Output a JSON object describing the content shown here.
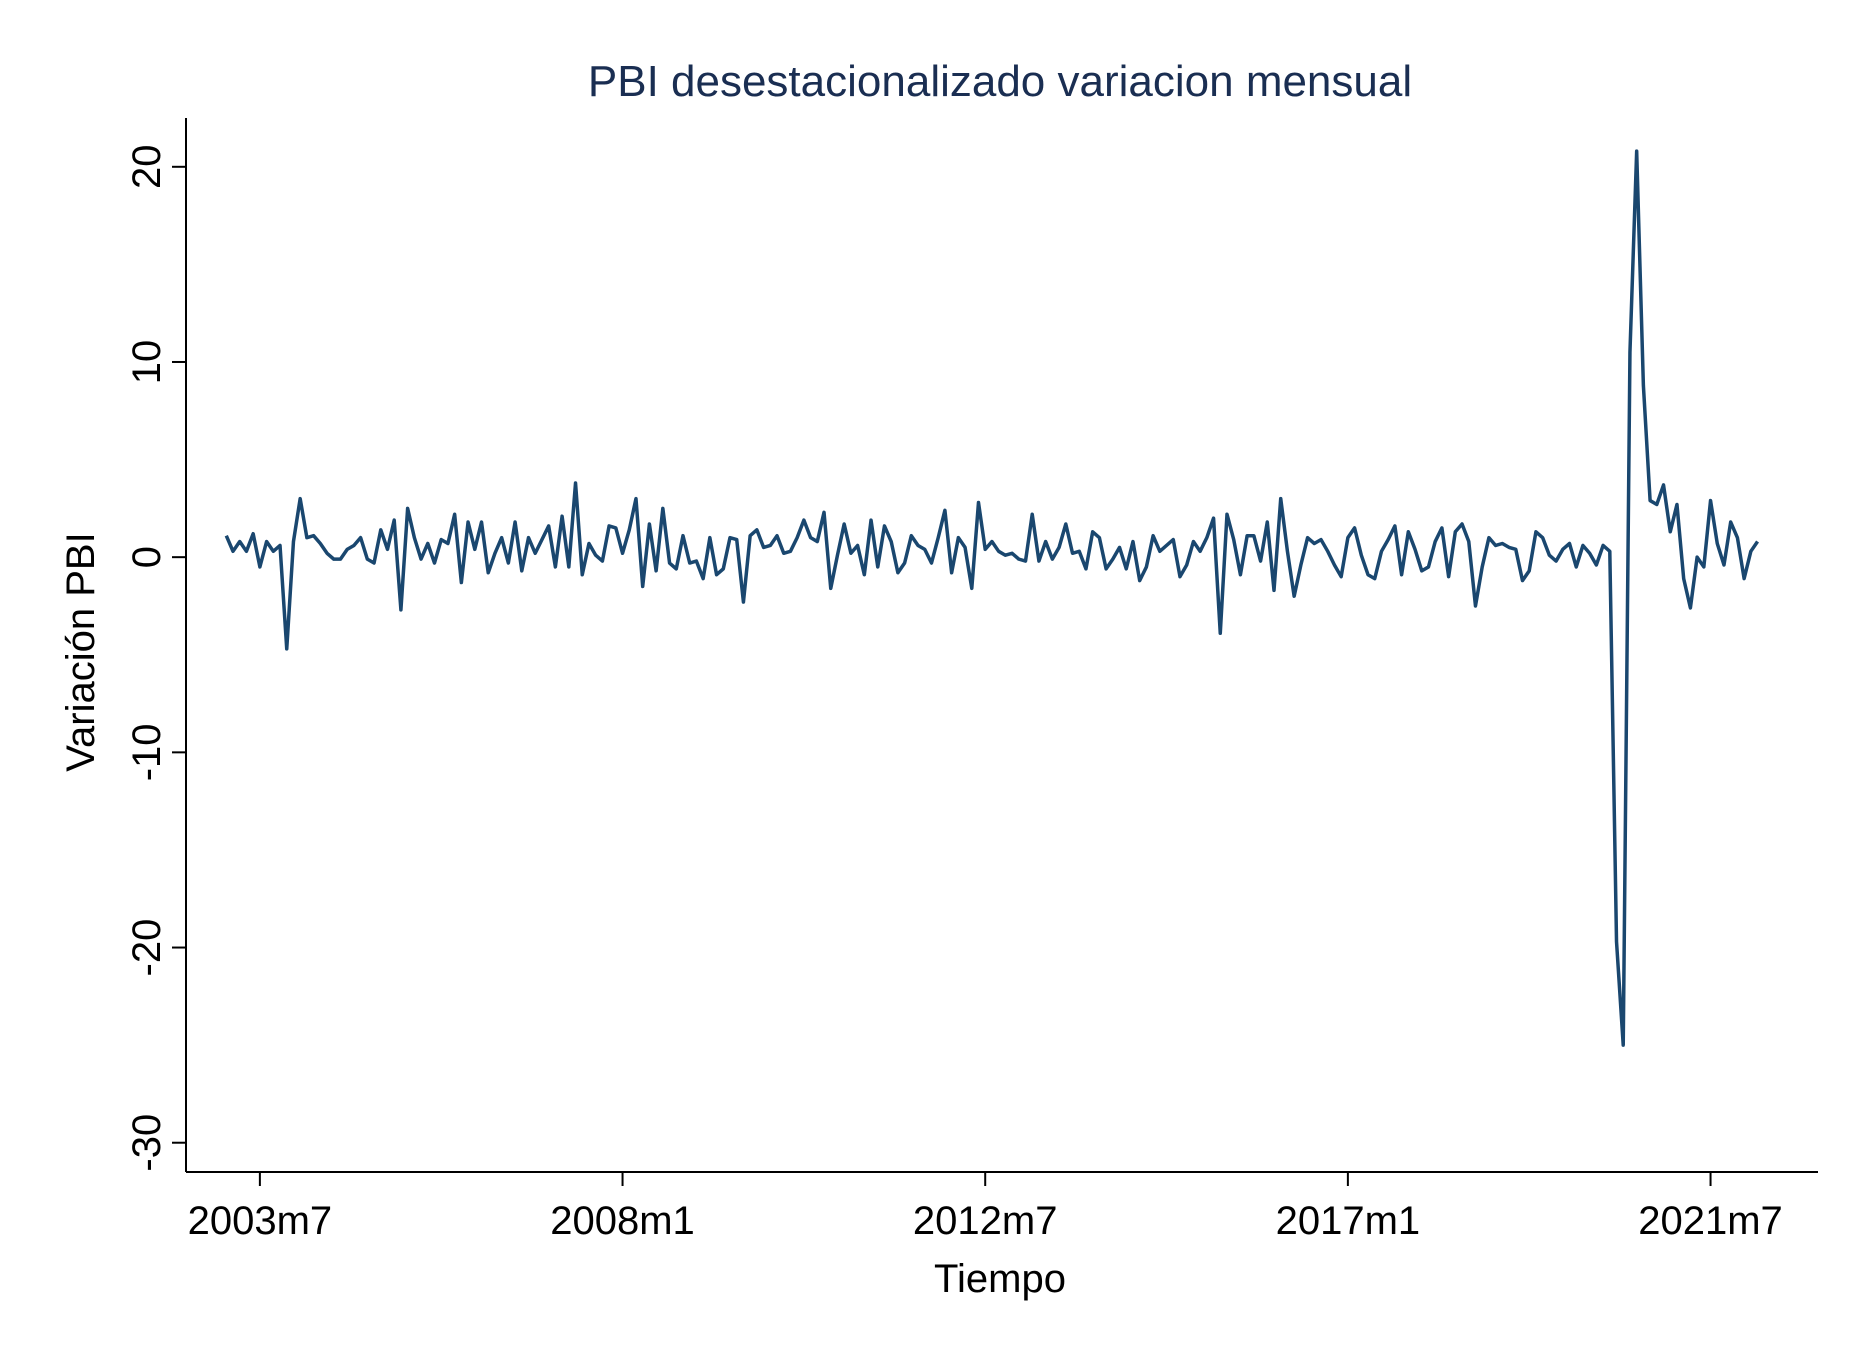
{
  "chart_data": {
    "type": "line",
    "title": "PBI desestacionalizado variacion mensual",
    "xlabel": "Tiempo",
    "ylabel": "Variación PBI",
    "xlim": [
      "2002m8",
      "2022m11"
    ],
    "ylim": [
      -31.5,
      22.5
    ],
    "y_ticks": [
      20,
      10,
      0,
      -10,
      -20,
      -30
    ],
    "y_tick_labels": [
      "20",
      "10",
      "0",
      "-10",
      "-20",
      "-30"
    ],
    "x_ticks": [
      "2003m7",
      "2008m1",
      "2012m7",
      "2017m1",
      "2021m7"
    ],
    "x_tick_labels": [
      "2003m7",
      "2008m1",
      "2012m7",
      "2017m1",
      "2021m7"
    ],
    "grid": false,
    "legend": "none",
    "line_color": "#1a476f",
    "title_color": "#1a2e52",
    "start_period": "2003m2",
    "series": [
      {
        "values": [
          1.1,
          0.3,
          0.8,
          0.3,
          1.2,
          -0.5,
          0.8,
          0.3,
          0.6,
          -4.7,
          0.8,
          3.0,
          1.0,
          1.1,
          0.7,
          0.2,
          -0.1,
          -0.1,
          0.4,
          0.6,
          1.0,
          -0.1,
          -0.3,
          1.4,
          0.4,
          1.9,
          -2.7,
          2.5,
          1.0,
          -0.1,
          0.7,
          -0.3,
          0.9,
          0.7,
          2.2,
          -1.3,
          1.8,
          0.4,
          1.8,
          -0.8,
          0.2,
          1.0,
          -0.3,
          1.8,
          -0.7,
          1.0,
          0.2,
          0.9,
          1.6,
          -0.5,
          2.1,
          -0.5,
          3.8,
          -0.9,
          0.7,
          0.1,
          -0.2,
          1.6,
          1.5,
          0.2,
          1.4,
          3.0,
          -1.5,
          1.7,
          -0.7,
          2.5,
          -0.3,
          -0.6,
          1.1,
          -0.3,
          -0.2,
          -1.1,
          1.0,
          -0.9,
          -0.6,
          1.0,
          0.9,
          -2.3,
          1.1,
          1.4,
          0.5,
          0.6,
          1.1,
          0.2,
          0.3,
          1.0,
          1.9,
          1.0,
          0.8,
          2.3,
          -1.6,
          0.1,
          1.7,
          0.2,
          0.6,
          -0.9,
          1.9,
          -0.5,
          1.6,
          0.8,
          -0.8,
          -0.3,
          1.1,
          0.6,
          0.4,
          -0.3,
          1.0,
          2.4,
          -0.8,
          1.0,
          0.5,
          -1.6,
          2.8,
          0.4,
          0.8,
          0.3,
          0.1,
          0.2,
          -0.1,
          -0.2,
          2.2,
          -0.2,
          0.8,
          -0.1,
          0.5,
          1.7,
          0.2,
          0.3,
          -0.6,
          1.3,
          1.0,
          -0.6,
          -0.1,
          0.5,
          -0.6,
          0.8,
          -1.2,
          -0.5,
          1.1,
          0.3,
          0.6,
          0.9,
          -1.0,
          -0.4,
          0.8,
          0.3,
          1.0,
          2.0,
          -3.9,
          2.2,
          0.9,
          -0.9,
          1.1,
          1.1,
          -0.2,
          1.8,
          -1.7,
          3.0,
          0.3,
          -2.0,
          -0.4,
          1.0,
          0.7,
          0.9,
          0.3,
          -0.4,
          -1.0,
          1.0,
          1.5,
          0.1,
          -0.9,
          -1.1,
          0.3,
          0.9,
          1.6,
          -0.9,
          1.3,
          0.4,
          -0.7,
          -0.5,
          0.8,
          1.5,
          -1.0,
          1.3,
          1.7,
          0.8,
          -2.5,
          -0.5,
          1.0,
          0.6,
          0.7,
          0.5,
          0.4,
          -1.2,
          -0.7,
          1.3,
          1.0,
          0.1,
          -0.2,
          0.4,
          0.7,
          -0.5,
          0.6,
          0.2,
          -0.4,
          0.6,
          0.3,
          -19.7,
          -25.0,
          10.5,
          20.8,
          8.8,
          2.9,
          2.7,
          3.7,
          1.3,
          2.7,
          -1.1,
          -2.6,
          0.0,
          -0.5,
          2.9,
          0.7,
          -0.4,
          1.8,
          1.0,
          -1.1,
          0.3,
          0.8
        ]
      }
    ]
  }
}
